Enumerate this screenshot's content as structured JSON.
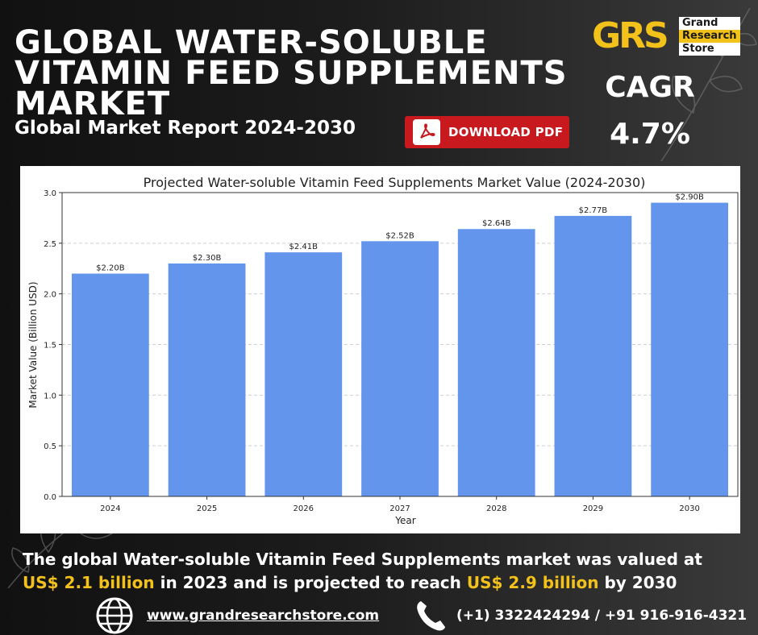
{
  "header": {
    "title": "GLOBAL WATER-SOLUBLE VITAMIN FEED SUPPLEMENTS MARKET",
    "subtitle": "Global Market Report 2024-2030",
    "download_label": "DOWNLOAD PDF"
  },
  "logo": {
    "mark": "GRS",
    "line1": "Grand",
    "line2": "Research",
    "line3": "Store"
  },
  "cagr": {
    "label": "CAGR",
    "value": "4.7%"
  },
  "chart_data": {
    "type": "bar",
    "title": "Projected Water-soluble Vitamin Feed Supplements Market Value (2024-2030)",
    "xlabel": "Year",
    "ylabel": "Market Value (Billion USD)",
    "categories": [
      "2024",
      "2025",
      "2026",
      "2027",
      "2028",
      "2029",
      "2030"
    ],
    "values": [
      2.2,
      2.3,
      2.41,
      2.52,
      2.64,
      2.77,
      2.9
    ],
    "data_labels": [
      "$2.20B",
      "$2.30B",
      "$2.41B",
      "$2.52B",
      "$2.64B",
      "$2.77B",
      "$2.90B"
    ],
    "yticks": [
      "0.0",
      "0.5",
      "1.0",
      "1.5",
      "2.0",
      "2.5",
      "3.0"
    ],
    "ylim": [
      0,
      3.0
    ],
    "grid": true,
    "bar_color": "#6495ed"
  },
  "footer": {
    "line1": "The global Water-soluble Vitamin Feed Supplements market was valued at",
    "value_2023": "US$ 2.1 billion",
    "mid": " in 2023 and is projected to reach ",
    "value_2030": "US$ 2.9 billion",
    "end": " by 2030",
    "website": "www.grandresearchstore.com",
    "phone": "(+1) 3322424294 / +91 916-916-4321"
  },
  "colors": {
    "highlight": "#f2c21b",
    "pdf_red": "#c8191f"
  }
}
